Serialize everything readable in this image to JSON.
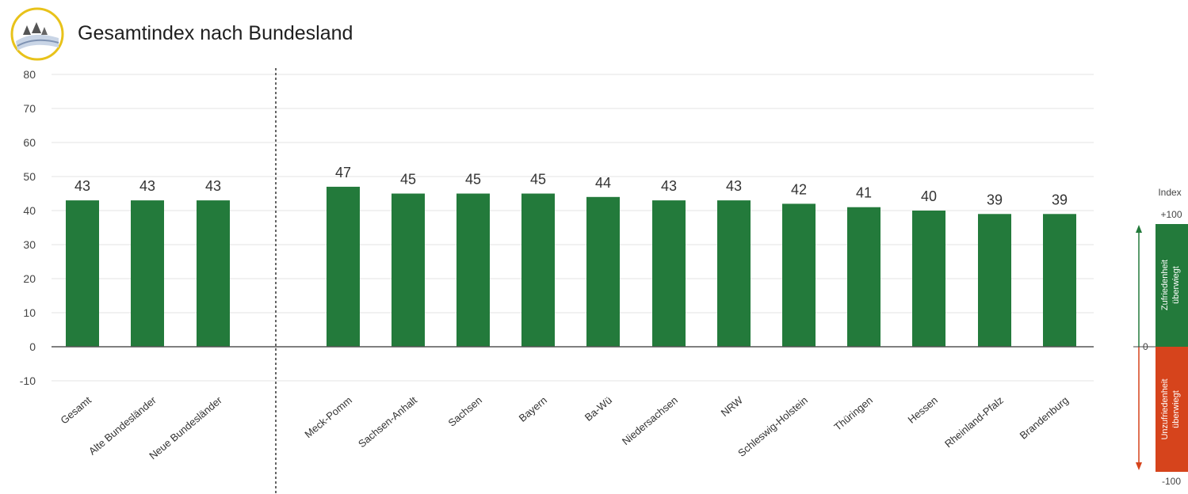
{
  "title": "Gesamtindex nach Bundesland",
  "chart_data": {
    "type": "bar",
    "title": "Gesamtindex nach Bundesland",
    "xlabel": "",
    "ylabel": "",
    "ylim": [
      -10,
      80
    ],
    "yticks": [
      80,
      70,
      60,
      50,
      40,
      30,
      20,
      10,
      0,
      -10
    ],
    "grid": true,
    "bar_color": "#237a3b",
    "categories": [
      "Gesamt",
      "Alte Bundesländer",
      "Neue Bundesländer",
      "Meck-Pomm",
      "Sachsen-Anhalt",
      "Sachsen",
      "Bayern",
      "Ba-Wü",
      "Niedersachsen",
      "NRW",
      "Schleswig-Holstein",
      "Thüringen",
      "Hessen",
      "Rheinland-Pfalz",
      "Brandenburg"
    ],
    "values": [
      43,
      43,
      43,
      47,
      45,
      45,
      45,
      44,
      43,
      43,
      42,
      41,
      40,
      39,
      39
    ],
    "data_labels": [
      "43",
      "43",
      "43",
      "47",
      "45",
      "45",
      "45",
      "44",
      "43",
      "43",
      "42",
      "41",
      "40",
      "39",
      "39"
    ]
  },
  "index_legend": {
    "heading": "Index",
    "top_value": "+100",
    "mid_value": "0",
    "bottom_value": "-100",
    "positive_text": [
      "Zufriedenheit",
      "überwiegt"
    ],
    "negative_text": [
      "Unzufriedenheit",
      "überwiegt"
    ],
    "positive_color": "#237a3b",
    "negative_color": "#d6441c"
  }
}
